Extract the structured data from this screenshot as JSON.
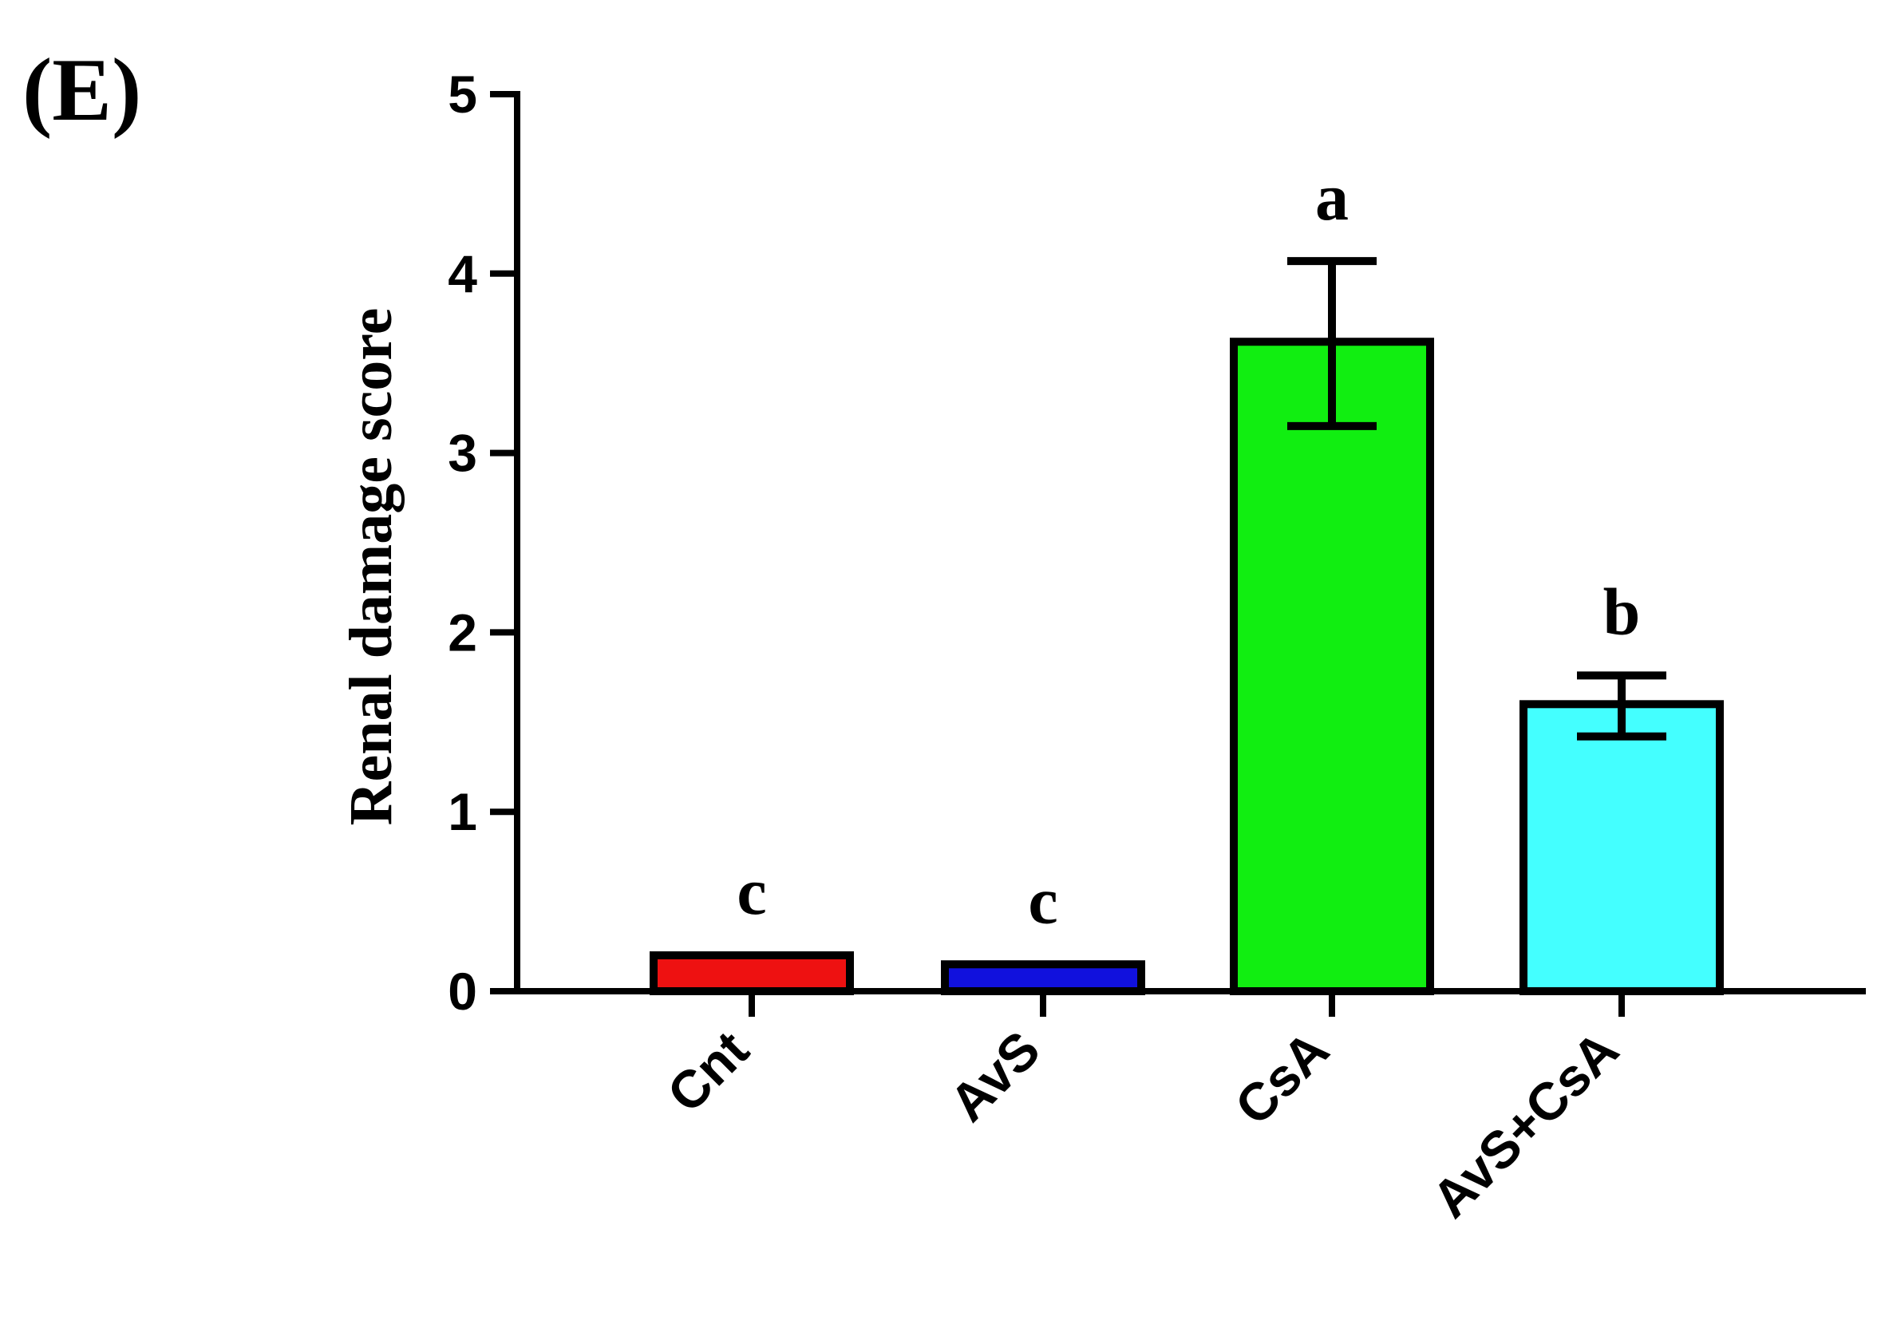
{
  "panel_label": "(E)",
  "chart_data": {
    "type": "bar",
    "title": "",
    "xlabel": "",
    "ylabel": "Renal damage score",
    "ylim": [
      0,
      5
    ],
    "yticks": [
      "0",
      "1",
      "2",
      "3",
      "4",
      "5"
    ],
    "categories": [
      "Cnt",
      "AvS",
      "CsA",
      "AvS+CsA"
    ],
    "values": [
      0.2,
      0.15,
      3.62,
      1.6
    ],
    "error_low": [
      0.2,
      0.15,
      3.15,
      1.42
    ],
    "error_high": [
      0.2,
      0.15,
      4.07,
      1.76
    ],
    "significance_letters": [
      "c",
      "c",
      "a",
      "b"
    ],
    "colors": [
      "#ee1111",
      "#1111dd",
      "#11ee11",
      "#44ffff"
    ],
    "grid": false,
    "legend": "none"
  }
}
